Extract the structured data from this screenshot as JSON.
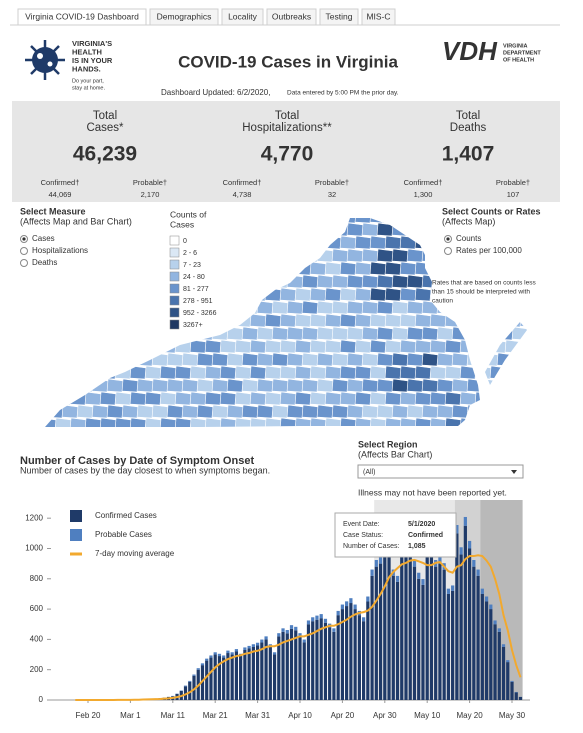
{
  "tabs": [
    "Virginia COVID-19 Dashboard",
    "Demographics",
    "Locality",
    "Outbreaks",
    "Testing",
    "MIS-C"
  ],
  "logo": {
    "lines": [
      "VIRGINIA'S",
      "HEALTH",
      "IS IN YOUR",
      "HANDS."
    ],
    "tagline": [
      "Do your part,",
      "stay at home."
    ]
  },
  "header": {
    "title": "COVID-19 Cases in Virginia",
    "vdh": "VDH",
    "vdh_name": [
      "VIRGINIA",
      "DEPARTMENT",
      "OF HEALTH"
    ],
    "updated": "Dashboard Updated: 6/2/2020,",
    "updated_note": "Data entered by 5:00 PM the prior day."
  },
  "kpis": [
    {
      "label": [
        "Total",
        "Cases*"
      ],
      "value": "46,239",
      "confirmed_label": "Confirmed†",
      "confirmed": "44,069",
      "probable_label": "Probable†",
      "probable": "2,170"
    },
    {
      "label": [
        "Total",
        "Hospitalizations**"
      ],
      "value": "4,770",
      "confirmed_label": "Confirmed†",
      "confirmed": "4,738",
      "probable_label": "Probable†",
      "probable": "32"
    },
    {
      "label": [
        "Total",
        "Deaths"
      ],
      "value": "1,407",
      "confirmed_label": "Confirmed†",
      "confirmed": "1,300",
      "probable_label": "Probable†",
      "probable": "107"
    }
  ],
  "measure": {
    "title": "Select Measure",
    "subtitle": "(Affects Map and Bar Chart)",
    "options": [
      "Cases",
      "Hospitalizations",
      "Deaths"
    ]
  },
  "map_legend": {
    "title": [
      "Counts of",
      "Cases"
    ],
    "bins": [
      "0",
      "2 - 6",
      "7 - 23",
      "24 - 80",
      "81 - 277",
      "278 - 951",
      "952 - 3266",
      "3267+"
    ],
    "colors": [
      "#ffffff",
      "#dbe8f5",
      "#b7d1ec",
      "#92b5e0",
      "#6a94cc",
      "#4a74ad",
      "#2f5386",
      "#1e3761"
    ]
  },
  "rate_select": {
    "title": "Select Counts or Rates",
    "subtitle": "(Affects Map)",
    "options": [
      "Counts",
      "Rates per 100,000"
    ]
  },
  "note": [
    "Rates that are based on counts less",
    "than 15 should be interpreted with",
    "caution"
  ],
  "region": {
    "title": "Select Region",
    "subtitle": "(Affects Bar Chart)",
    "value": "(All)"
  },
  "illness_note": "Illness may not have been reported yet.",
  "tooltip": [
    [
      "Event Date:",
      "5/1/2020"
    ],
    [
      "Case Status:",
      "Confirmed"
    ],
    [
      "Number of Cases:",
      "1,085"
    ]
  ],
  "chart_data": {
    "type": "bar",
    "stacked": true,
    "title": "Number of Cases by Date of Symptom Onset",
    "subtitle": "Number of cases by the day closest to when symptoms began.",
    "categories": [
      "Feb 17",
      "Feb 18",
      "Feb 19",
      "Feb 20",
      "Feb 21",
      "Feb 22",
      "Feb 23",
      "Feb 24",
      "Feb 25",
      "Feb 26",
      "Feb 27",
      "Feb 28",
      "Feb 29",
      "Mar 1",
      "Mar 2",
      "Mar 3",
      "Mar 4",
      "Mar 5",
      "Mar 6",
      "Mar 7",
      "Mar 8",
      "Mar 9",
      "Mar 10",
      "Mar 11",
      "Mar 12",
      "Mar 13",
      "Mar 14",
      "Mar 15",
      "Mar 16",
      "Mar 17",
      "Mar 18",
      "Mar 19",
      "Mar 20",
      "Mar 21",
      "Mar 22",
      "Mar 23",
      "Mar 24",
      "Mar 25",
      "Mar 26",
      "Mar 27",
      "Mar 28",
      "Mar 29",
      "Mar 30",
      "Mar 31",
      "Apr 1",
      "Apr 2",
      "Apr 3",
      "Apr 4",
      "Apr 5",
      "Apr 6",
      "Apr 7",
      "Apr 8",
      "Apr 9",
      "Apr 10",
      "Apr 11",
      "Apr 12",
      "Apr 13",
      "Apr 14",
      "Apr 15",
      "Apr 16",
      "Apr 17",
      "Apr 18",
      "Apr 19",
      "Apr 20",
      "Apr 21",
      "Apr 22",
      "Apr 23",
      "Apr 24",
      "Apr 25",
      "Apr 26",
      "Apr 27",
      "Apr 28",
      "Apr 29",
      "Apr 30",
      "May 1",
      "May 2",
      "May 3",
      "May 4",
      "May 5",
      "May 6",
      "May 7",
      "May 8",
      "May 9",
      "May 10",
      "May 11",
      "May 12",
      "May 13",
      "May 14",
      "May 15",
      "May 16",
      "May 17",
      "May 18",
      "May 19",
      "May 20",
      "May 21",
      "May 22",
      "May 23",
      "May 24",
      "May 25",
      "May 26",
      "May 27",
      "May 28",
      "May 29",
      "May 30",
      "May 31",
      "Jun 1"
    ],
    "series": [
      {
        "name": "Confirmed Cases",
        "color": "#1f3a68",
        "values": [
          0,
          0,
          0,
          0,
          0,
          1,
          0,
          1,
          0,
          1,
          2,
          1,
          2,
          2,
          3,
          4,
          5,
          6,
          8,
          10,
          12,
          15,
          20,
          25,
          40,
          60,
          90,
          120,
          160,
          200,
          230,
          260,
          280,
          300,
          290,
          280,
          310,
          300,
          320,
          290,
          330,
          340,
          350,
          360,
          380,
          400,
          350,
          300,
          420,
          450,
          440,
          470,
          460,
          420,
          380,
          500,
          520,
          530,
          540,
          510,
          480,
          450,
          560,
          600,
          620,
          640,
          600,
          560,
          520,
          650,
          820,
          880,
          900,
          950,
          1085,
          820,
          780,
          1000,
          950,
          1020,
          880,
          800,
          760,
          950,
          980,
          880,
          900,
          860,
          700,
          720,
          1100,
          960,
          1150,
          1000,
          880,
          820,
          700,
          650,
          600,
          500,
          450,
          350,
          250,
          120,
          50,
          20
        ]
      },
      {
        "name": "Probable Cases",
        "color": "#4f7fc0",
        "values": [
          0,
          0,
          0,
          0,
          0,
          0,
          0,
          0,
          0,
          0,
          0,
          0,
          0,
          0,
          0,
          0,
          0,
          0,
          0,
          0,
          0,
          1,
          1,
          2,
          2,
          3,
          5,
          6,
          8,
          10,
          12,
          13,
          14,
          15,
          15,
          14,
          16,
          15,
          16,
          15,
          17,
          17,
          18,
          18,
          19,
          20,
          18,
          15,
          21,
          23,
          22,
          24,
          23,
          21,
          19,
          25,
          26,
          27,
          27,
          26,
          24,
          23,
          28,
          30,
          31,
          32,
          30,
          28,
          26,
          33,
          41,
          44,
          45,
          48,
          54,
          41,
          39,
          50,
          48,
          51,
          44,
          40,
          38,
          48,
          49,
          44,
          45,
          43,
          35,
          36,
          55,
          48,
          58,
          50,
          44,
          41,
          35,
          33,
          30,
          25,
          23,
          18,
          13,
          6,
          3,
          1
        ]
      },
      {
        "name": "7-day moving average",
        "type": "line",
        "color": "#f2a92e",
        "values": [
          0,
          0,
          0,
          0,
          0,
          0,
          0,
          0,
          0,
          0,
          1,
          1,
          1,
          1,
          2,
          2,
          3,
          4,
          5,
          6,
          7,
          9,
          11,
          14,
          19,
          26,
          37,
          51,
          70,
          95,
          125,
          155,
          185,
          215,
          237,
          255,
          270,
          280,
          290,
          295,
          305,
          310,
          320,
          325,
          335,
          350,
          355,
          355,
          365,
          380,
          390,
          400,
          410,
          420,
          420,
          430,
          440,
          455,
          470,
          480,
          490,
          490,
          500,
          515,
          530,
          550,
          565,
          575,
          580,
          590,
          615,
          655,
          700,
          750,
          810,
          845,
          870,
          895,
          905,
          920,
          925,
          915,
          905,
          890,
          890,
          905,
          910,
          880,
          850,
          840,
          880,
          890,
          930,
          950,
          950,
          955,
          950,
          920,
          880,
          800,
          700,
          560,
          460,
          330,
          230,
          150
        ]
      }
    ],
    "xticks": [
      "Feb 20",
      "Mar 1",
      "Mar 11",
      "Mar 21",
      "Mar 31",
      "Apr 10",
      "Apr 20",
      "Apr 30",
      "May 10",
      "May 20",
      "May 30"
    ],
    "ylim": [
      0,
      1320
    ],
    "yticks": [
      0,
      200,
      400,
      600,
      800,
      1000,
      1200
    ]
  }
}
